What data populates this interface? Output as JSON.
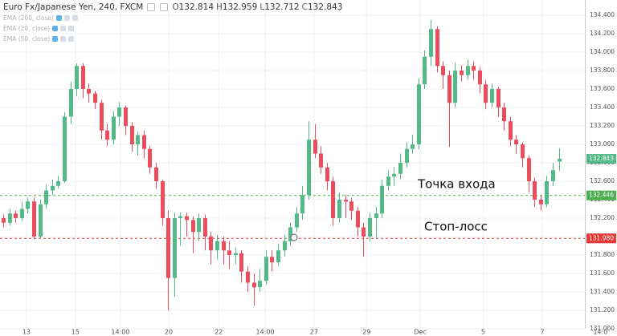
{
  "chart_data": {
    "type": "candlestick",
    "title": "Euro Fx/Japanese Yen, 240, FXCM",
    "ohlc_labels": [
      "O",
      "H",
      "L",
      "C"
    ],
    "indicators": [
      "EMA (200, close)",
      "EMA (20, close)",
      "EMA (50, close)"
    ],
    "up_color": "#53b987",
    "down_color": "#eb4d5c",
    "grid": true,
    "x": [
      0,
      1,
      2,
      3,
      4,
      5,
      6,
      7,
      8,
      9,
      10,
      11,
      12,
      13,
      14,
      15,
      16,
      17,
      18,
      19,
      20,
      21,
      22,
      23,
      24,
      25,
      26,
      27,
      28,
      29,
      30,
      31,
      32,
      33,
      34,
      35,
      36,
      37,
      38,
      39,
      40,
      41,
      42,
      43,
      44,
      45,
      46,
      47,
      48,
      49,
      50,
      51,
      52,
      53,
      54,
      55,
      56,
      57,
      58,
      59,
      60,
      61,
      62,
      63,
      64,
      65,
      66,
      67,
      68,
      69,
      70,
      71,
      72,
      73,
      74,
      75,
      76,
      77,
      78,
      79,
      80,
      81,
      82,
      83,
      84,
      85,
      86,
      87,
      88,
      89,
      90,
      91
    ],
    "series": [
      {
        "open": [
          132.2,
          132.15,
          132.25,
          132.2,
          132.3,
          132.38,
          132.0,
          132.35,
          132.5,
          132.55,
          132.6,
          133.3,
          133.6,
          133.85,
          133.6,
          133.55,
          133.45,
          133.15,
          133.05,
          133.3,
          133.4,
          133.2,
          133.0,
          133.1,
          132.95,
          132.75,
          132.6,
          132.2,
          131.55,
          132.2,
          132.22,
          132.18,
          132.05,
          132.2,
          132.0,
          131.85,
          131.95,
          131.85,
          131.8,
          131.82,
          131.62,
          131.5,
          131.45,
          131.52,
          131.78,
          131.72,
          131.85,
          131.95,
          132.1,
          132.25,
          132.45,
          133.05,
          132.9,
          132.75,
          132.6,
          132.2,
          132.4,
          132.38,
          132.28,
          132.1,
          132.0,
          132.2,
          132.25,
          132.55,
          132.65,
          132.68,
          132.8,
          132.95,
          133.0,
          133.65,
          133.95,
          134.25,
          133.85,
          133.75,
          133.45,
          133.8,
          133.75,
          133.85,
          133.8,
          133.65,
          133.45,
          133.6,
          133.4,
          133.25,
          133.05,
          133.0,
          132.85,
          132.6,
          132.4,
          132.35,
          132.6,
          132.814
        ],
        "high": [
          132.24,
          132.3,
          132.28,
          132.38,
          132.42,
          132.42,
          132.4,
          132.56,
          132.62,
          132.66,
          133.35,
          133.68,
          133.88,
          133.88,
          133.66,
          133.58,
          133.48,
          133.22,
          133.36,
          133.46,
          133.42,
          133.24,
          133.14,
          133.15,
          132.98,
          132.8,
          132.62,
          132.28,
          132.26,
          132.26,
          132.26,
          132.22,
          132.25,
          132.24,
          132.05,
          132.02,
          132.0,
          131.95,
          131.88,
          131.85,
          131.68,
          131.6,
          131.65,
          131.85,
          131.85,
          131.92,
          132.02,
          132.15,
          132.32,
          132.55,
          133.25,
          133.22,
          132.98,
          132.8,
          132.65,
          132.48,
          132.45,
          132.42,
          132.32,
          132.15,
          132.26,
          132.32,
          132.62,
          132.72,
          132.75,
          132.9,
          133.02,
          133.1,
          133.72,
          134.02,
          134.35,
          134.28,
          133.9,
          133.8,
          133.88,
          133.86,
          133.92,
          133.9,
          133.84,
          133.7,
          133.66,
          133.62,
          133.45,
          133.3,
          133.1,
          133.02,
          132.88,
          132.64,
          132.45,
          132.66,
          132.8,
          132.959
        ],
        "low": [
          132.1,
          132.12,
          132.15,
          132.17,
          132.25,
          131.97,
          131.98,
          132.3,
          132.45,
          132.52,
          132.58,
          133.22,
          133.52,
          133.5,
          133.45,
          133.38,
          133.05,
          132.98,
          133.0,
          133.2,
          133.1,
          132.92,
          132.88,
          132.85,
          132.68,
          132.52,
          132.12,
          131.2,
          131.35,
          131.9,
          132.0,
          131.82,
          131.95,
          131.85,
          131.7,
          131.75,
          131.7,
          131.65,
          131.7,
          131.5,
          131.4,
          131.25,
          131.4,
          131.48,
          131.62,
          131.68,
          131.78,
          131.9,
          132.05,
          132.18,
          132.4,
          132.85,
          132.68,
          132.5,
          132.12,
          132.15,
          132.2,
          132.18,
          132.0,
          131.78,
          131.95,
          131.98,
          132.2,
          132.5,
          132.55,
          132.62,
          132.75,
          132.9,
          132.95,
          133.6,
          133.85,
          133.78,
          133.6,
          132.97,
          133.4,
          133.68,
          133.7,
          133.7,
          133.55,
          133.38,
          133.4,
          133.3,
          133.15,
          132.98,
          132.9,
          132.75,
          132.48,
          132.32,
          132.28,
          132.32,
          132.55,
          132.712
        ],
        "close": [
          132.15,
          132.25,
          132.2,
          132.3,
          132.38,
          132.0,
          132.35,
          132.5,
          132.55,
          132.6,
          133.3,
          133.6,
          133.85,
          133.6,
          133.55,
          133.45,
          133.15,
          133.05,
          133.3,
          133.4,
          133.2,
          133.0,
          133.1,
          132.95,
          132.75,
          132.6,
          132.2,
          131.55,
          132.2,
          132.22,
          132.18,
          132.05,
          132.2,
          132.0,
          131.85,
          131.95,
          131.85,
          131.8,
          131.82,
          131.62,
          131.5,
          131.45,
          131.52,
          131.78,
          131.72,
          131.85,
          131.95,
          132.1,
          132.25,
          132.45,
          133.05,
          132.9,
          132.75,
          132.6,
          132.2,
          132.4,
          132.38,
          132.28,
          132.1,
          132.0,
          132.2,
          132.25,
          132.55,
          132.65,
          132.68,
          132.8,
          132.95,
          133.0,
          133.65,
          133.95,
          134.25,
          133.85,
          133.75,
          133.45,
          133.8,
          133.75,
          133.85,
          133.8,
          133.65,
          133.45,
          133.6,
          133.4,
          133.25,
          133.05,
          133.0,
          132.85,
          132.6,
          132.4,
          132.35,
          132.6,
          132.72,
          132.843
        ]
      }
    ],
    "xlim": [
      -0.53,
      95.26
    ],
    "xticks": [
      {
        "value": 3.8,
        "label": "13"
      },
      {
        "value": 11.8,
        "label": "15"
      },
      {
        "value": 19.2,
        "label": "14:00"
      },
      {
        "value": 27.1,
        "label": "20"
      },
      {
        "value": 35.3,
        "label": "22"
      },
      {
        "value": 42.9,
        "label": "14:00"
      },
      {
        "value": 50.9,
        "label": "27"
      },
      {
        "value": 59.5,
        "label": "29"
      },
      {
        "value": 68.3,
        "label": "Dec"
      },
      {
        "value": 78.6,
        "label": "5"
      },
      {
        "value": 88.3,
        "label": "7"
      },
      {
        "value": 97.8,
        "label": "14:0"
      }
    ],
    "ylim": [
      131.0,
      134.565
    ],
    "yticks": [
      {
        "value": 131.0,
        "label": "131.000"
      },
      {
        "value": 131.2,
        "label": "131.200"
      },
      {
        "value": 131.4,
        "label": "131.400"
      },
      {
        "value": 131.6,
        "label": "131.600"
      },
      {
        "value": 131.8,
        "label": "131.800"
      },
      {
        "value": 132.0,
        "label": "132.000"
      },
      {
        "value": 132.2,
        "label": "132.200"
      },
      {
        "value": 132.4,
        "label": "132.400"
      },
      {
        "value": 132.6,
        "label": "132.600"
      },
      {
        "value": 132.8,
        "label": "132.800"
      },
      {
        "value": 133.0,
        "label": "133.000"
      },
      {
        "value": 133.2,
        "label": "133.200"
      },
      {
        "value": 133.4,
        "label": "133.400"
      },
      {
        "value": 133.6,
        "label": "133.600"
      },
      {
        "value": 133.8,
        "label": "133.800"
      },
      {
        "value": 134.0,
        "label": "134.000"
      },
      {
        "value": 134.2,
        "label": "134.200"
      },
      {
        "value": 134.4,
        "label": "134.400"
      }
    ],
    "hlines": [
      {
        "value": 132.446,
        "color": "#4caf50",
        "text": "Точка входа"
      },
      {
        "value": 131.98,
        "label": "131.980",
        "color": "#e53935",
        "text": "Стоп-лосс"
      }
    ]
  }
}
